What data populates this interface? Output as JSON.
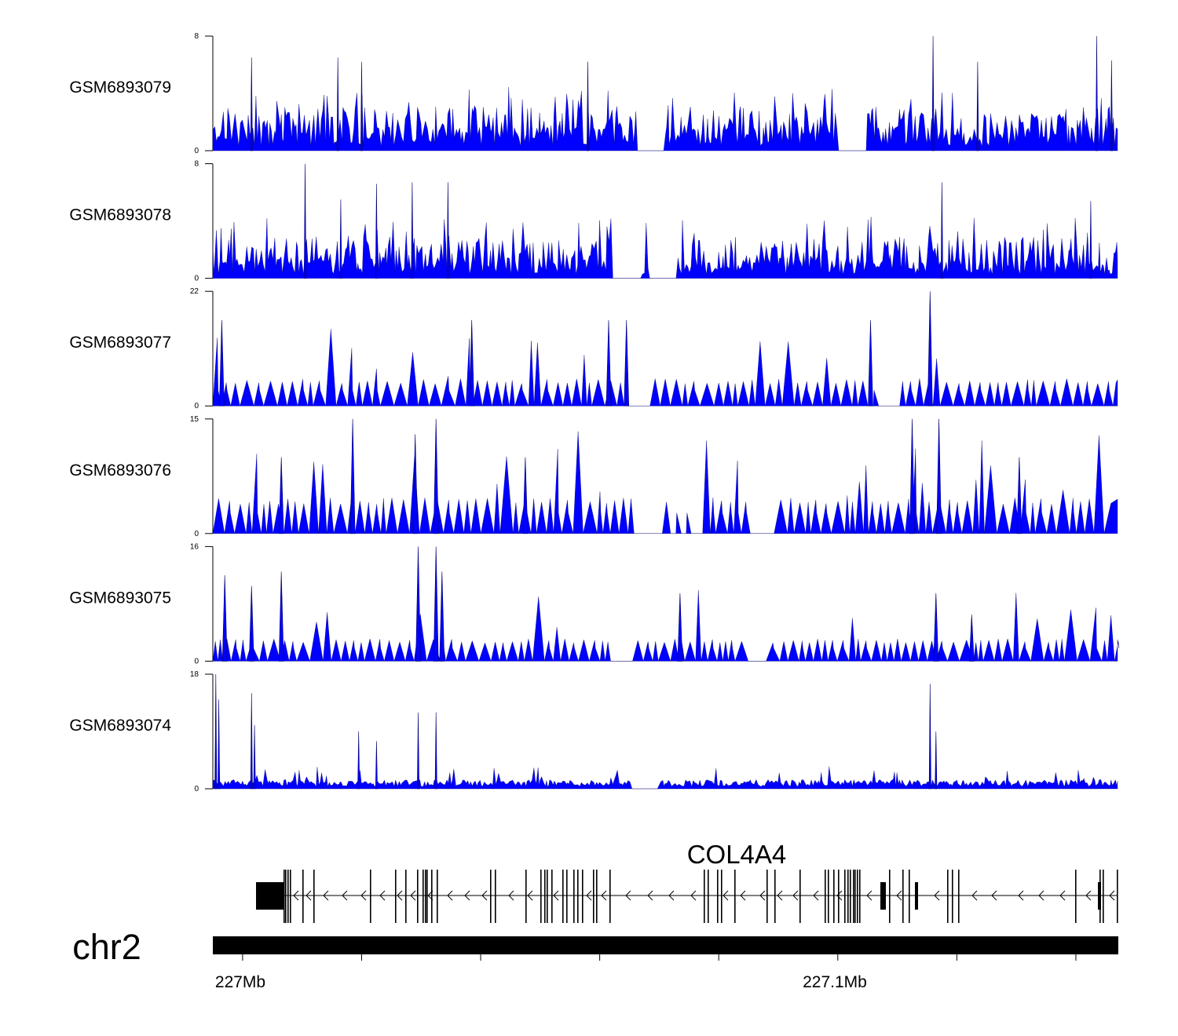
{
  "chart_data": {
    "type": "area",
    "title": "",
    "series_color": "#0000ff",
    "region": {
      "chrom": "chr2",
      "start_mb": 226.995,
      "end_mb": 227.147
    },
    "tracks": [
      {
        "name": "GSM6893079",
        "ylim": [
          0,
          8
        ],
        "ytick_top": "8",
        "ytick_bottom": "0",
        "profile": "uniform",
        "baseline": 1.5,
        "spike": 3,
        "max": 8,
        "peaks": [
          [
            227.0015,
            6.5
          ],
          [
            227.016,
            6.5
          ],
          [
            227.02,
            6.2
          ],
          [
            227.058,
            6.2
          ],
          [
            227.116,
            8.0
          ],
          [
            227.1235,
            6.2
          ],
          [
            227.1435,
            8.0
          ],
          [
            227.146,
            6.3
          ]
        ],
        "gaps": [
          227.0685,
          227.1025
        ]
      },
      {
        "name": "GSM6893078",
        "ylim": [
          0,
          8
        ],
        "ytick_top": "8",
        "ytick_bottom": "0",
        "profile": "uniform",
        "baseline": 1.3,
        "spike": 3,
        "max": 8,
        "peaks": [
          [
            227.0105,
            8.0
          ],
          [
            227.0165,
            5.5
          ],
          [
            227.0225,
            6.6
          ],
          [
            227.0285,
            6.7
          ],
          [
            227.0345,
            6.7
          ],
          [
            227.1175,
            6.7
          ],
          [
            227.1425,
            5.4
          ]
        ],
        "gaps": [
          227.0645,
          227.0705
        ]
      },
      {
        "name": "GSM6893077",
        "ylim": [
          0,
          22
        ],
        "ytick_top": "22",
        "ytick_bottom": "0",
        "profile": "sparse",
        "baseline": 5,
        "spike": 10,
        "max": 22,
        "peaks": [
          [
            226.9965,
            16.5
          ],
          [
            227.0385,
            16.5
          ],
          [
            227.0615,
            16.5
          ],
          [
            227.0645,
            16.5
          ],
          [
            227.1055,
            16.5
          ],
          [
            227.1155,
            22.0
          ]
        ],
        "gaps": [
          227.066,
          227.1078
        ]
      },
      {
        "name": "GSM6893076",
        "ylim": [
          0,
          15
        ],
        "ytick_top": "15",
        "ytick_bottom": "0",
        "profile": "sparse",
        "baseline": 4.5,
        "spike": 9,
        "max": 15,
        "peaks": [
          [
            227.0065,
            10.0
          ],
          [
            227.0185,
            15.0
          ],
          [
            227.029,
            13.0
          ],
          [
            227.0325,
            15.0
          ],
          [
            227.0475,
            10.0
          ],
          [
            227.1125,
            15.0
          ],
          [
            227.117,
            15.0
          ],
          [
            227.1305,
            10.0
          ]
        ],
        "gaps": [
          227.068,
          227.0745,
          227.0875
        ]
      },
      {
        "name": "GSM6893075",
        "ylim": [
          0,
          16
        ],
        "ytick_top": "16",
        "ytick_bottom": "0",
        "profile": "sparse",
        "baseline": 3,
        "spike": 7,
        "max": 16,
        "peaks": [
          [
            226.997,
            12.0
          ],
          [
            227.0015,
            10.5
          ],
          [
            227.0065,
            12.5
          ],
          [
            227.0295,
            16.0
          ],
          [
            227.0325,
            16.0
          ],
          [
            227.0335,
            12.5
          ],
          [
            227.0735,
            9.5
          ],
          [
            227.1165,
            9.5
          ],
          [
            227.1225,
            6.5
          ]
        ],
        "gaps": [
          227.064,
          227.0865
        ]
      },
      {
        "name": "GSM6893074",
        "ylim": [
          0,
          18
        ],
        "ytick_top": "18",
        "ytick_bottom": "0",
        "profile": "noise",
        "baseline": 1.2,
        "spike": 2.5,
        "max": 18,
        "peaks": [
          [
            226.9955,
            18.0
          ],
          [
            226.996,
            14.0
          ],
          [
            227.0015,
            15.0
          ],
          [
            227.002,
            10.0
          ],
          [
            227.0195,
            9.0
          ],
          [
            227.0225,
            7.5
          ],
          [
            227.0295,
            12.0
          ],
          [
            227.0325,
            12.0
          ],
          [
            227.1155,
            16.5
          ],
          [
            227.1165,
            9.0
          ]
        ],
        "gaps": [
          227.0675
        ]
      }
    ],
    "gene": {
      "name": "COL4A4",
      "strand": "-"
    },
    "axis": {
      "chrom_label": "chr2",
      "tick_labels": [
        {
          "pos_mb": 227.0,
          "label": "227Mb"
        },
        {
          "pos_mb": 227.1,
          "label": "227.1Mb"
        }
      ],
      "minor_ticks_mb": [
        227.0,
        227.02,
        227.04,
        227.06,
        227.08,
        227.1,
        227.12,
        227.14
      ]
    }
  }
}
